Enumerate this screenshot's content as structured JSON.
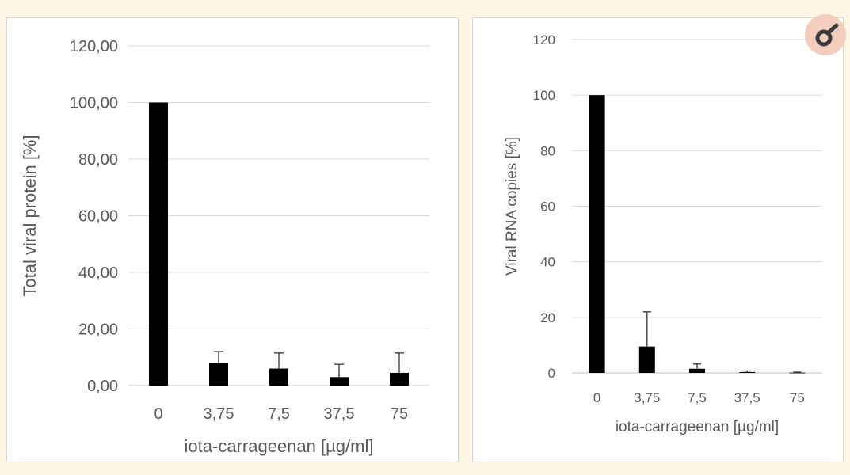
{
  "chart_data": [
    {
      "type": "bar",
      "categories": [
        "0",
        "3,75",
        "7,5",
        "37,5",
        "75"
      ],
      "values": [
        100,
        8,
        6,
        3,
        4.5
      ],
      "error_upper": [
        100,
        12,
        11.5,
        7.5,
        11.5
      ],
      "ylabel": "Total viral protein [%]",
      "xlabel": "iota-carrageenan [µg/ml]",
      "ylim": [
        0,
        120
      ],
      "yticks": [
        "0,00",
        "20,00",
        "40,00",
        "60,00",
        "80,00",
        "100,00",
        "120,00"
      ],
      "grid": true,
      "color": "#000000"
    },
    {
      "type": "bar",
      "categories": [
        "0",
        "3,75",
        "7,5",
        "37,5",
        "75"
      ],
      "values": [
        100,
        9.5,
        1.5,
        0.3,
        0.1
      ],
      "error_upper": [
        100,
        22,
        3.2,
        0.7,
        0.3
      ],
      "ylabel": "Viral RNA copies [%]",
      "xlabel": "iota-carrageenan [µg/ml]",
      "ylim": [
        0,
        120
      ],
      "yticks": [
        "0",
        "20",
        "40",
        "60",
        "80",
        "100",
        "120"
      ],
      "grid": true,
      "color": "#000000"
    }
  ],
  "logo": {
    "icon": "journal-logo-icon",
    "background": "#f3cdbd",
    "color": "#3a3a3a"
  }
}
